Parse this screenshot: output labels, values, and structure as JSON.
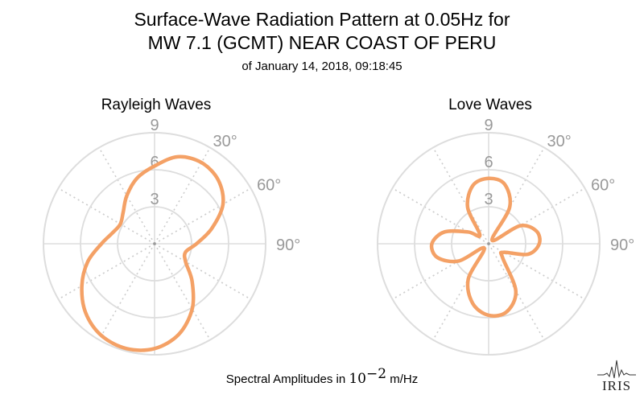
{
  "title": {
    "line1": "Surface-Wave Radiation Pattern at 0.05Hz for",
    "line2": "MW 7.1 (GCMT) NEAR COAST OF PERU",
    "subtitle": "of January 14, 2018, 09:18:45"
  },
  "footer": {
    "label_prefix": "Spectral Amplitudes in ",
    "label_base": "10",
    "label_exp": "−2",
    "label_unit": " m/Hz"
  },
  "logo": {
    "text": "IRIS"
  },
  "colors": {
    "pattern": "#f4a166",
    "grid": "#dddddd",
    "dotted": "#cccccc",
    "tick_label": "#999999"
  },
  "chart_data": [
    {
      "type": "polar-line",
      "title": "Rayleigh Waves",
      "radial_ticks": [
        3,
        6,
        9
      ],
      "radial_tick_labels": [
        "3",
        "6",
        "9"
      ],
      "rmax": 9,
      "angle_tick_labels": [
        "30°",
        "60°",
        "90°"
      ],
      "grid": true,
      "series": [
        {
          "azimuth_deg": [
            0,
            15,
            30,
            45,
            60,
            75,
            90,
            105,
            120,
            135,
            150,
            165,
            180,
            195,
            210,
            225,
            240,
            255,
            270,
            285,
            300,
            315,
            330,
            345
          ],
          "amplitude": [
            6.3,
            7.3,
            7.6,
            7.3,
            6.4,
            4.8,
            3.4,
            2.6,
            2.9,
            4.3,
            6.1,
            7.6,
            8.5,
            8.8,
            8.6,
            7.9,
            6.8,
            5.6,
            4.3,
            3.5,
            3.2,
            3.6,
            4.5,
            5.5
          ]
        }
      ]
    },
    {
      "type": "polar-line",
      "title": "Love Waves",
      "radial_ticks": [
        3,
        6,
        9
      ],
      "radial_tick_labels": [
        "3",
        "6",
        "9"
      ],
      "rmax": 9,
      "angle_tick_labels": [
        "30°",
        "60°",
        "90°"
      ],
      "grid": true,
      "series": [
        {
          "azimuth_deg": [
            0,
            15,
            30,
            45,
            60,
            75,
            90,
            105,
            120,
            135,
            150,
            165,
            180,
            195,
            210,
            225,
            240,
            255,
            270,
            285,
            300,
            315,
            330,
            345
          ],
          "amplitude": [
            5.3,
            5.0,
            3.4,
            0.4,
            2.9,
            4.0,
            4.1,
            3.3,
            1.4,
            1.6,
            4.4,
            5.7,
            5.8,
            5.0,
            3.3,
            0.5,
            2.8,
            4.3,
            4.6,
            3.7,
            1.9,
            1.0,
            3.4,
            4.9
          ]
        }
      ]
    }
  ]
}
